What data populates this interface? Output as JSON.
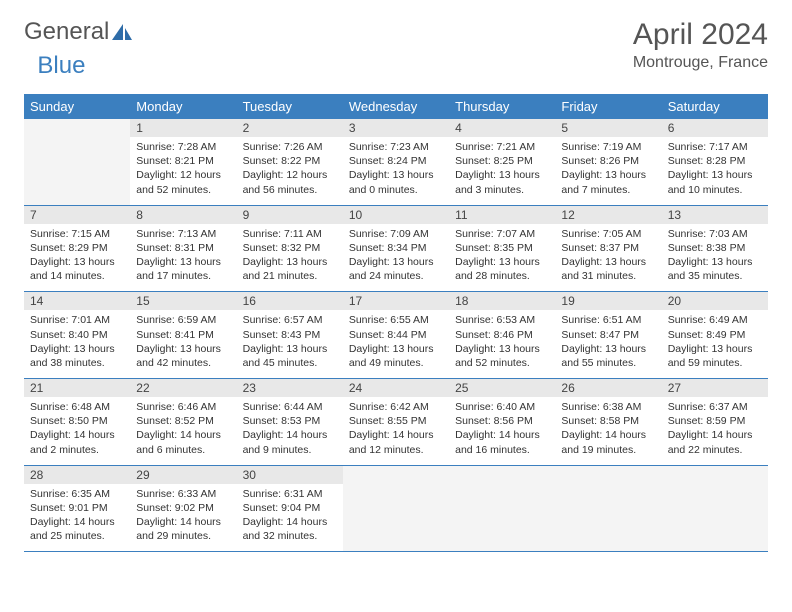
{
  "logo": {
    "text_a": "General",
    "text_b": "Blue"
  },
  "title": "April 2024",
  "location": "Montrouge, France",
  "colors": {
    "header_bg": "#3b7fbf",
    "header_fg": "#ffffff",
    "daynum_bg": "#e8e8e8",
    "empty_bg": "#f4f4f4",
    "rule": "#3b7fbf",
    "text": "#333333",
    "title_text": "#555555"
  },
  "day_headers": [
    "Sunday",
    "Monday",
    "Tuesday",
    "Wednesday",
    "Thursday",
    "Friday",
    "Saturday"
  ],
  "weeks": [
    {
      "nums": [
        "",
        "1",
        "2",
        "3",
        "4",
        "5",
        "6"
      ],
      "cells": [
        null,
        {
          "sr": "Sunrise: 7:28 AM",
          "ss": "Sunset: 8:21 PM",
          "d1": "Daylight: 12 hours",
          "d2": "and 52 minutes."
        },
        {
          "sr": "Sunrise: 7:26 AM",
          "ss": "Sunset: 8:22 PM",
          "d1": "Daylight: 12 hours",
          "d2": "and 56 minutes."
        },
        {
          "sr": "Sunrise: 7:23 AM",
          "ss": "Sunset: 8:24 PM",
          "d1": "Daylight: 13 hours",
          "d2": "and 0 minutes."
        },
        {
          "sr": "Sunrise: 7:21 AM",
          "ss": "Sunset: 8:25 PM",
          "d1": "Daylight: 13 hours",
          "d2": "and 3 minutes."
        },
        {
          "sr": "Sunrise: 7:19 AM",
          "ss": "Sunset: 8:26 PM",
          "d1": "Daylight: 13 hours",
          "d2": "and 7 minutes."
        },
        {
          "sr": "Sunrise: 7:17 AM",
          "ss": "Sunset: 8:28 PM",
          "d1": "Daylight: 13 hours",
          "d2": "and 10 minutes."
        }
      ]
    },
    {
      "nums": [
        "7",
        "8",
        "9",
        "10",
        "11",
        "12",
        "13"
      ],
      "cells": [
        {
          "sr": "Sunrise: 7:15 AM",
          "ss": "Sunset: 8:29 PM",
          "d1": "Daylight: 13 hours",
          "d2": "and 14 minutes."
        },
        {
          "sr": "Sunrise: 7:13 AM",
          "ss": "Sunset: 8:31 PM",
          "d1": "Daylight: 13 hours",
          "d2": "and 17 minutes."
        },
        {
          "sr": "Sunrise: 7:11 AM",
          "ss": "Sunset: 8:32 PM",
          "d1": "Daylight: 13 hours",
          "d2": "and 21 minutes."
        },
        {
          "sr": "Sunrise: 7:09 AM",
          "ss": "Sunset: 8:34 PM",
          "d1": "Daylight: 13 hours",
          "d2": "and 24 minutes."
        },
        {
          "sr": "Sunrise: 7:07 AM",
          "ss": "Sunset: 8:35 PM",
          "d1": "Daylight: 13 hours",
          "d2": "and 28 minutes."
        },
        {
          "sr": "Sunrise: 7:05 AM",
          "ss": "Sunset: 8:37 PM",
          "d1": "Daylight: 13 hours",
          "d2": "and 31 minutes."
        },
        {
          "sr": "Sunrise: 7:03 AM",
          "ss": "Sunset: 8:38 PM",
          "d1": "Daylight: 13 hours",
          "d2": "and 35 minutes."
        }
      ]
    },
    {
      "nums": [
        "14",
        "15",
        "16",
        "17",
        "18",
        "19",
        "20"
      ],
      "cells": [
        {
          "sr": "Sunrise: 7:01 AM",
          "ss": "Sunset: 8:40 PM",
          "d1": "Daylight: 13 hours",
          "d2": "and 38 minutes."
        },
        {
          "sr": "Sunrise: 6:59 AM",
          "ss": "Sunset: 8:41 PM",
          "d1": "Daylight: 13 hours",
          "d2": "and 42 minutes."
        },
        {
          "sr": "Sunrise: 6:57 AM",
          "ss": "Sunset: 8:43 PM",
          "d1": "Daylight: 13 hours",
          "d2": "and 45 minutes."
        },
        {
          "sr": "Sunrise: 6:55 AM",
          "ss": "Sunset: 8:44 PM",
          "d1": "Daylight: 13 hours",
          "d2": "and 49 minutes."
        },
        {
          "sr": "Sunrise: 6:53 AM",
          "ss": "Sunset: 8:46 PM",
          "d1": "Daylight: 13 hours",
          "d2": "and 52 minutes."
        },
        {
          "sr": "Sunrise: 6:51 AM",
          "ss": "Sunset: 8:47 PM",
          "d1": "Daylight: 13 hours",
          "d2": "and 55 minutes."
        },
        {
          "sr": "Sunrise: 6:49 AM",
          "ss": "Sunset: 8:49 PM",
          "d1": "Daylight: 13 hours",
          "d2": "and 59 minutes."
        }
      ]
    },
    {
      "nums": [
        "21",
        "22",
        "23",
        "24",
        "25",
        "26",
        "27"
      ],
      "cells": [
        {
          "sr": "Sunrise: 6:48 AM",
          "ss": "Sunset: 8:50 PM",
          "d1": "Daylight: 14 hours",
          "d2": "and 2 minutes."
        },
        {
          "sr": "Sunrise: 6:46 AM",
          "ss": "Sunset: 8:52 PM",
          "d1": "Daylight: 14 hours",
          "d2": "and 6 minutes."
        },
        {
          "sr": "Sunrise: 6:44 AM",
          "ss": "Sunset: 8:53 PM",
          "d1": "Daylight: 14 hours",
          "d2": "and 9 minutes."
        },
        {
          "sr": "Sunrise: 6:42 AM",
          "ss": "Sunset: 8:55 PM",
          "d1": "Daylight: 14 hours",
          "d2": "and 12 minutes."
        },
        {
          "sr": "Sunrise: 6:40 AM",
          "ss": "Sunset: 8:56 PM",
          "d1": "Daylight: 14 hours",
          "d2": "and 16 minutes."
        },
        {
          "sr": "Sunrise: 6:38 AM",
          "ss": "Sunset: 8:58 PM",
          "d1": "Daylight: 14 hours",
          "d2": "and 19 minutes."
        },
        {
          "sr": "Sunrise: 6:37 AM",
          "ss": "Sunset: 8:59 PM",
          "d1": "Daylight: 14 hours",
          "d2": "and 22 minutes."
        }
      ]
    },
    {
      "nums": [
        "28",
        "29",
        "30",
        "",
        "",
        "",
        ""
      ],
      "cells": [
        {
          "sr": "Sunrise: 6:35 AM",
          "ss": "Sunset: 9:01 PM",
          "d1": "Daylight: 14 hours",
          "d2": "and 25 minutes."
        },
        {
          "sr": "Sunrise: 6:33 AM",
          "ss": "Sunset: 9:02 PM",
          "d1": "Daylight: 14 hours",
          "d2": "and 29 minutes."
        },
        {
          "sr": "Sunrise: 6:31 AM",
          "ss": "Sunset: 9:04 PM",
          "d1": "Daylight: 14 hours",
          "d2": "and 32 minutes."
        },
        null,
        null,
        null,
        null
      ]
    }
  ]
}
